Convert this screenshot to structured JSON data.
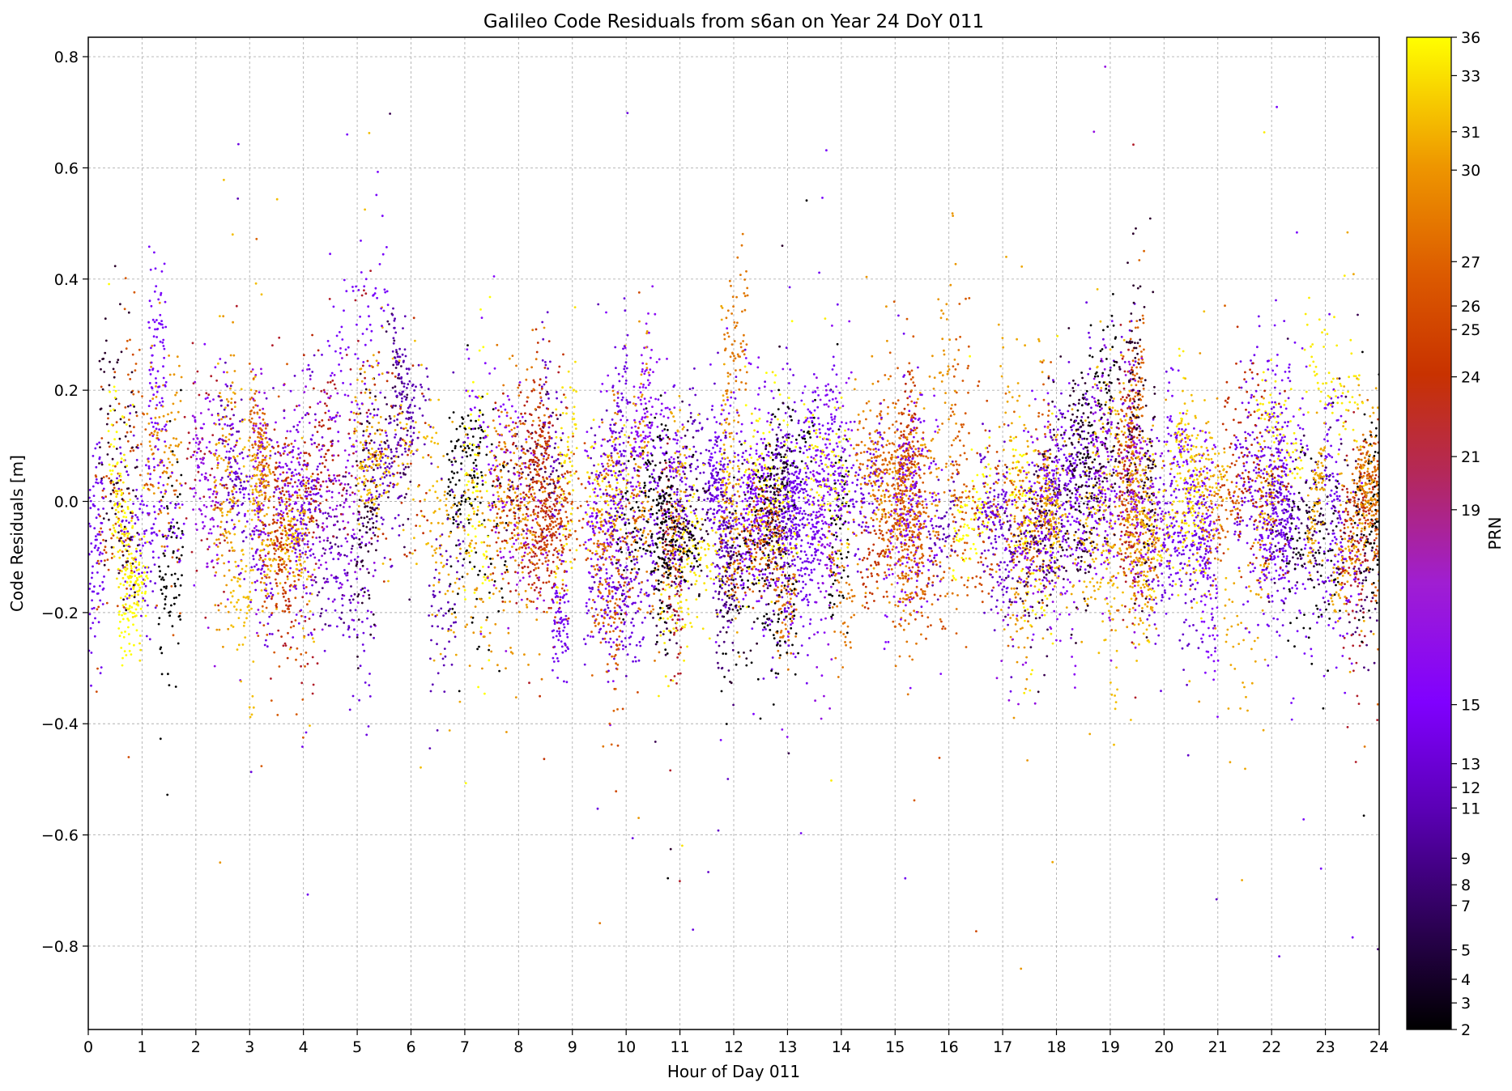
{
  "chart_data": {
    "type": "scatter",
    "title": "Galileo Code Residuals from s6an on Year 24 DoY 011",
    "xlabel": "Hour of Day 011",
    "ylabel": "Code Residuals [m]",
    "xlim": [
      0,
      24
    ],
    "ylim": [
      -0.95,
      0.835
    ],
    "x_ticks": [
      "0",
      "1",
      "2",
      "3",
      "4",
      "5",
      "6",
      "7",
      "8",
      "9",
      "10",
      "11",
      "12",
      "13",
      "14",
      "15",
      "16",
      "17",
      "18",
      "19",
      "20",
      "21",
      "22",
      "23",
      "24"
    ],
    "y_ticks": [
      "0.8",
      "0.6",
      "0.4",
      "0.2",
      "0.0",
      "−0.2",
      "−0.4",
      "−0.6",
      "−0.8"
    ],
    "grid": true,
    "colorbar": {
      "label": "PRN",
      "colormap": "gnuplot",
      "ticks": [
        "2",
        "3",
        "4",
        "5",
        "7",
        "8",
        "9",
        "11",
        "12",
        "13",
        "15",
        "19",
        "21",
        "24",
        "25",
        "26",
        "27",
        "30",
        "31",
        "33",
        "36"
      ],
      "range": [
        2,
        36
      ]
    },
    "prns": [
      2,
      3,
      4,
      5,
      7,
      8,
      9,
      10,
      11,
      12,
      13,
      14,
      15,
      18,
      19,
      21,
      24,
      25,
      26,
      27,
      29,
      30,
      31,
      33,
      34,
      36
    ],
    "series_note_values": {
      "approx_point_cloud_center": 0.0,
      "approx_typical_spread": 0.15
    }
  }
}
